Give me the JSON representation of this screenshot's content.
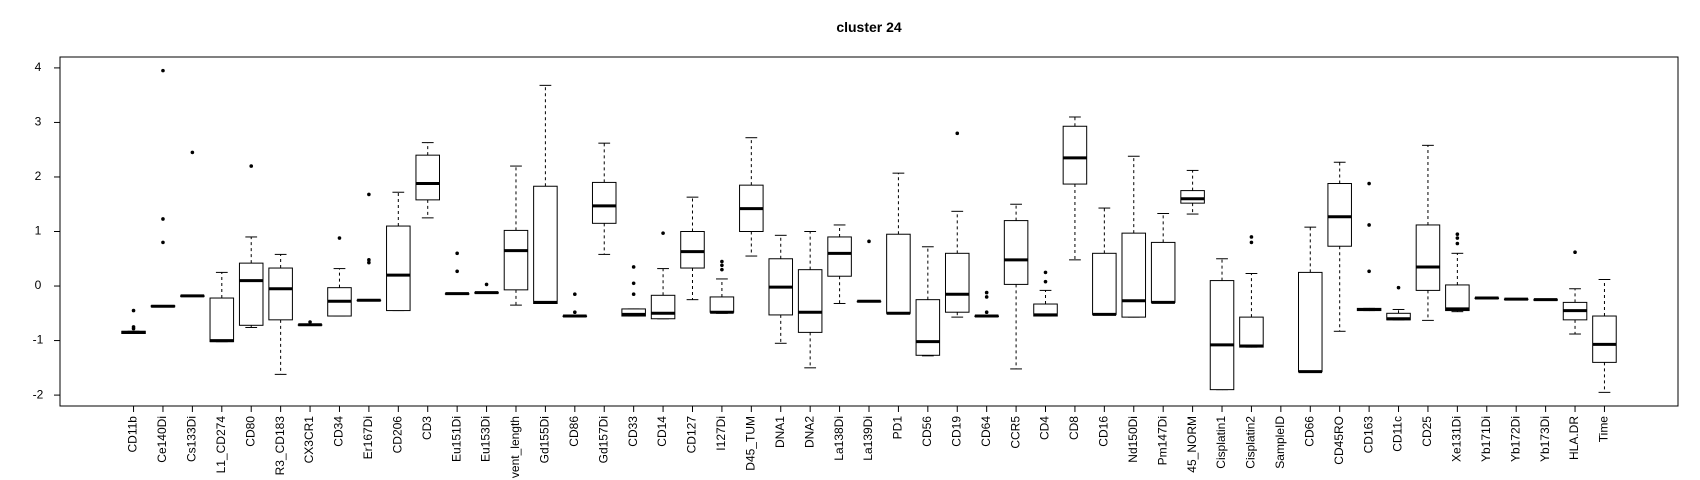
{
  "chart_data": {
    "type": "boxplot",
    "title": "cluster 24",
    "categories": [
      "CD11b",
      "Ce140Di",
      "Cs133Di",
      "L1_CD274",
      "CD80",
      "R3_CD183",
      "CX3CR1",
      "CD34",
      "Er167Di",
      "CD206",
      "CD3",
      "Eu151Di",
      "Eu153Di",
      "vent_length",
      "Gd155Di",
      "CD86",
      "Gd157Di",
      "CD33",
      "CD14",
      "CD127",
      "I127Di",
      "D45_TUM",
      "DNA1",
      "DNA2",
      "La138Di",
      "La139Di",
      "PD1",
      "CD56",
      "CD19",
      "CD64",
      "CCR5",
      "CD4",
      "CD8",
      "CD16",
      "Nd150Di",
      "Pm147Di",
      "45_NORM",
      "Cisplatin1",
      "Cisplatin2",
      "SampleID",
      "CD66",
      "CD45RO",
      "CD163",
      "CD11c",
      "CD25",
      "Xe131Di",
      "Yb171Di",
      "Yb172Di",
      "Yb173Di",
      "HLA.DR",
      "Time"
    ],
    "boxes": [
      {
        "whisker_low": -0.87,
        "q1": -0.87,
        "median": -0.85,
        "q3": -0.83,
        "whisker_high": -0.83,
        "outliers": [
          -0.78,
          -0.75,
          -0.45
        ]
      },
      {
        "whisker_low": -0.38,
        "q1": -0.38,
        "median": -0.37,
        "q3": -0.36,
        "whisker_high": -0.36,
        "outliers": [
          0.8,
          1.23,
          3.95
        ]
      },
      {
        "whisker_low": -0.18,
        "q1": -0.18,
        "median": -0.18,
        "q3": -0.18,
        "whisker_high": -0.18,
        "outliers": [
          2.45
        ]
      },
      {
        "whisker_low": -1.02,
        "q1": -1.02,
        "median": -1.0,
        "q3": -0.22,
        "whisker_high": 0.25,
        "outliers": []
      },
      {
        "whisker_low": -0.76,
        "q1": -0.72,
        "median": 0.1,
        "q3": 0.42,
        "whisker_high": 0.9,
        "outliers": [
          2.2
        ]
      },
      {
        "whisker_low": -1.62,
        "q1": -0.62,
        "median": -0.05,
        "q3": 0.33,
        "whisker_high": 0.58,
        "outliers": []
      },
      {
        "whisker_low": -0.71,
        "q1": -0.71,
        "median": -0.71,
        "q3": -0.71,
        "whisker_high": -0.71,
        "outliers": [
          -0.66
        ]
      },
      {
        "whisker_low": -0.55,
        "q1": -0.55,
        "median": -0.28,
        "q3": -0.03,
        "whisker_high": 0.32,
        "outliers": [
          0.88
        ]
      },
      {
        "whisker_low": -0.26,
        "q1": -0.26,
        "median": -0.26,
        "q3": -0.26,
        "whisker_high": -0.26,
        "outliers": [
          0.43,
          0.48,
          1.68
        ]
      },
      {
        "whisker_low": -0.45,
        "q1": -0.45,
        "median": 0.2,
        "q3": 1.1,
        "whisker_high": 1.72,
        "outliers": []
      },
      {
        "whisker_low": 1.25,
        "q1": 1.58,
        "median": 1.88,
        "q3": 2.4,
        "whisker_high": 2.63,
        "outliers": []
      },
      {
        "whisker_low": -0.14,
        "q1": -0.14,
        "median": -0.14,
        "q3": -0.14,
        "whisker_high": -0.14,
        "outliers": [
          0.27,
          0.6
        ]
      },
      {
        "whisker_low": -0.12,
        "q1": -0.12,
        "median": -0.12,
        "q3": -0.12,
        "whisker_high": -0.12,
        "outliers": [
          0.03
        ]
      },
      {
        "whisker_low": -0.35,
        "q1": -0.07,
        "median": 0.65,
        "q3": 1.02,
        "whisker_high": 2.2,
        "outliers": []
      },
      {
        "whisker_low": -0.32,
        "q1": -0.32,
        "median": -0.3,
        "q3": 1.83,
        "whisker_high": 3.68,
        "outliers": []
      },
      {
        "whisker_low": -0.55,
        "q1": -0.55,
        "median": -0.55,
        "q3": -0.55,
        "whisker_high": -0.55,
        "outliers": [
          -0.48,
          -0.15
        ]
      },
      {
        "whisker_low": 0.58,
        "q1": 1.15,
        "median": 1.47,
        "q3": 1.9,
        "whisker_high": 2.62,
        "outliers": []
      },
      {
        "whisker_low": -0.55,
        "q1": -0.55,
        "median": -0.52,
        "q3": -0.42,
        "whisker_high": -0.42,
        "outliers": [
          -0.15,
          0.05,
          0.35
        ]
      },
      {
        "whisker_low": -0.6,
        "q1": -0.6,
        "median": -0.5,
        "q3": -0.17,
        "whisker_high": 0.32,
        "outliers": [
          0.97
        ]
      },
      {
        "whisker_low": -0.25,
        "q1": 0.33,
        "median": 0.63,
        "q3": 1.0,
        "whisker_high": 1.63,
        "outliers": []
      },
      {
        "whisker_low": -0.5,
        "q1": -0.48,
        "median": -0.48,
        "q3": -0.2,
        "whisker_high": 0.13,
        "outliers": [
          0.3,
          0.38,
          0.45
        ]
      },
      {
        "whisker_low": 0.55,
        "q1": 1.0,
        "median": 1.42,
        "q3": 1.85,
        "whisker_high": 2.72,
        "outliers": []
      },
      {
        "whisker_low": -1.05,
        "q1": -0.53,
        "median": -0.02,
        "q3": 0.5,
        "whisker_high": 0.93,
        "outliers": []
      },
      {
        "whisker_low": -1.5,
        "q1": -0.85,
        "median": -0.48,
        "q3": 0.3,
        "whisker_high": 1.0,
        "outliers": []
      },
      {
        "whisker_low": -0.32,
        "q1": 0.18,
        "median": 0.6,
        "q3": 0.9,
        "whisker_high": 1.12,
        "outliers": []
      },
      {
        "whisker_low": -0.28,
        "q1": -0.28,
        "median": -0.28,
        "q3": -0.28,
        "whisker_high": -0.28,
        "outliers": [
          0.82
        ]
      },
      {
        "whisker_low": -0.5,
        "q1": -0.5,
        "median": -0.5,
        "q3": 0.95,
        "whisker_high": 2.07,
        "outliers": []
      },
      {
        "whisker_low": -1.28,
        "q1": -1.27,
        "median": -1.02,
        "q3": -0.25,
        "whisker_high": 0.72,
        "outliers": []
      },
      {
        "whisker_low": -0.57,
        "q1": -0.48,
        "median": -0.15,
        "q3": 0.6,
        "whisker_high": 1.37,
        "outliers": [
          2.8
        ]
      },
      {
        "whisker_low": -0.55,
        "q1": -0.55,
        "median": -0.55,
        "q3": -0.55,
        "whisker_high": -0.55,
        "outliers": [
          -0.48,
          -0.2,
          -0.12
        ]
      },
      {
        "whisker_low": -1.52,
        "q1": 0.03,
        "median": 0.48,
        "q3": 1.2,
        "whisker_high": 1.5,
        "outliers": []
      },
      {
        "whisker_low": -0.55,
        "q1": -0.55,
        "median": -0.53,
        "q3": -0.33,
        "whisker_high": -0.08,
        "outliers": [
          0.08,
          0.25
        ]
      },
      {
        "whisker_low": 0.48,
        "q1": 1.87,
        "median": 2.35,
        "q3": 2.93,
        "whisker_high": 3.1,
        "outliers": []
      },
      {
        "whisker_low": -0.52,
        "q1": -0.52,
        "median": -0.52,
        "q3": 0.6,
        "whisker_high": 1.43,
        "outliers": []
      },
      {
        "whisker_low": -0.57,
        "q1": -0.57,
        "median": -0.27,
        "q3": 0.97,
        "whisker_high": 2.38,
        "outliers": []
      },
      {
        "whisker_low": -0.3,
        "q1": -0.3,
        "median": -0.3,
        "q3": 0.8,
        "whisker_high": 1.33,
        "outliers": []
      },
      {
        "whisker_low": 1.32,
        "q1": 1.52,
        "median": 1.6,
        "q3": 1.75,
        "whisker_high": 2.12,
        "outliers": []
      },
      {
        "whisker_low": -1.9,
        "q1": -1.9,
        "median": -1.08,
        "q3": 0.1,
        "whisker_high": 0.5,
        "outliers": []
      },
      {
        "whisker_low": -1.12,
        "q1": -1.12,
        "median": -1.1,
        "q3": -0.57,
        "whisker_high": 0.23,
        "outliers": [
          0.8,
          0.9
        ]
      },
      null,
      {
        "whisker_low": -1.57,
        "q1": -1.57,
        "median": -1.57,
        "q3": 0.25,
        "whisker_high": 1.08,
        "outliers": []
      },
      {
        "whisker_low": -0.83,
        "q1": 0.73,
        "median": 1.27,
        "q3": 1.88,
        "whisker_high": 2.27,
        "outliers": []
      },
      {
        "whisker_low": -0.45,
        "q1": -0.45,
        "median": -0.43,
        "q3": -0.41,
        "whisker_high": -0.41,
        "outliers": [
          0.27,
          1.12,
          1.88
        ]
      },
      {
        "whisker_low": -0.62,
        "q1": -0.62,
        "median": -0.6,
        "q3": -0.5,
        "whisker_high": -0.43,
        "outliers": [
          -0.03
        ]
      },
      {
        "whisker_low": -0.63,
        "q1": -0.08,
        "median": 0.35,
        "q3": 1.12,
        "whisker_high": 2.58,
        "outliers": []
      },
      {
        "whisker_low": -0.47,
        "q1": -0.45,
        "median": -0.42,
        "q3": 0.02,
        "whisker_high": 0.6,
        "outliers": [
          0.78,
          0.88,
          0.95
        ]
      },
      {
        "whisker_low": -0.22,
        "q1": -0.22,
        "median": -0.22,
        "q3": -0.22,
        "whisker_high": -0.22,
        "outliers": []
      },
      {
        "whisker_low": -0.24,
        "q1": -0.24,
        "median": -0.24,
        "q3": -0.24,
        "whisker_high": -0.24,
        "outliers": []
      },
      {
        "whisker_low": -0.25,
        "q1": -0.25,
        "median": -0.25,
        "q3": -0.25,
        "whisker_high": -0.25,
        "outliers": []
      },
      {
        "whisker_low": -0.88,
        "q1": -0.62,
        "median": -0.45,
        "q3": -0.3,
        "whisker_high": -0.05,
        "outliers": [
          0.62
        ]
      },
      {
        "whisker_low": -1.95,
        "q1": -1.4,
        "median": -1.07,
        "q3": -0.55,
        "whisker_high": 0.12,
        "outliers": []
      }
    ],
    "color": "#000000",
    "ylim": [
      -2.2,
      4.2
    ],
    "yticks": [
      -2,
      -1,
      0,
      1,
      2,
      3,
      4
    ],
    "grid": false
  }
}
